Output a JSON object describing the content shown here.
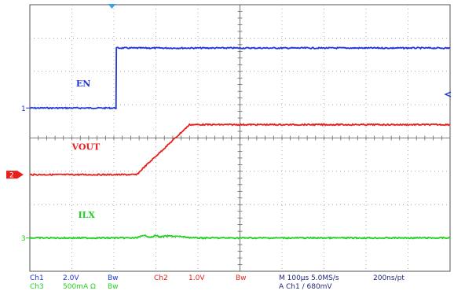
{
  "chart_data": {
    "type": "line",
    "title": "",
    "xlabel": "",
    "ylabel": "",
    "grid": true,
    "x_divisions": 10,
    "y_divisions": 8,
    "xlim": [
      0,
      10
    ],
    "ylim": [
      -4,
      4
    ],
    "series": [
      {
        "name": "EN",
        "color": "#1f35d6",
        "marker": "1",
        "marker_color": "#1f35d6",
        "x": [
          0,
          2.05,
          2.06,
          10
        ],
        "y": [
          0.9,
          0.9,
          2.7,
          2.7
        ]
      },
      {
        "name": "VOUT",
        "color": "#e8201c",
        "marker": "2",
        "marker_color": "#e8201c",
        "x": [
          0,
          2.55,
          2.7,
          3.8,
          10
        ],
        "y": [
          -1.1,
          -1.1,
          -0.9,
          0.4,
          0.4
        ]
      },
      {
        "name": "ILX",
        "color": "#1fd21f",
        "marker": "3",
        "marker_color": "#1fd21f",
        "x": [
          0,
          2.5,
          2.6,
          2.75,
          2.9,
          3.0,
          3.1,
          3.3,
          3.6,
          3.9,
          10
        ],
        "y": [
          -3.0,
          -3.0,
          -2.97,
          -2.93,
          -2.98,
          -2.92,
          -2.97,
          -2.94,
          -2.96,
          -3.0,
          -3.0
        ]
      }
    ],
    "annotations": [
      {
        "text": "EN",
        "color": "#1f35d6",
        "anchor_x": 1.1,
        "anchor_y": 1.55
      },
      {
        "text": "VOUT",
        "color": "#e8201c",
        "anchor_x": 1.0,
        "anchor_y": -0.35
      },
      {
        "text": "ILX",
        "color": "#1fd21f",
        "anchor_x": 1.15,
        "anchor_y": -2.4
      }
    ]
  },
  "readout": {
    "ch1_label": "Ch1",
    "ch1_scale": "2.0V",
    "ch1_bw": "Bw",
    "ch2_label": "Ch2",
    "ch2_scale": "1.0V",
    "ch2_bw": "Bw",
    "ch3_label": "Ch3",
    "ch3_scale": "500mA Ω",
    "ch3_bw": "Bw",
    "timebase": "M 100µs 5.0MS/s",
    "record": "200ns/pt",
    "trigger": "A  Ch1  ∕  680mV"
  },
  "colors": {
    "grid": "#8c8c8c",
    "frame": "#555555",
    "readout_blue": "#1f35d6",
    "readout_red": "#e8201c",
    "readout_green": "#1fd21f",
    "trigger_marker": "#3aa0e0"
  }
}
